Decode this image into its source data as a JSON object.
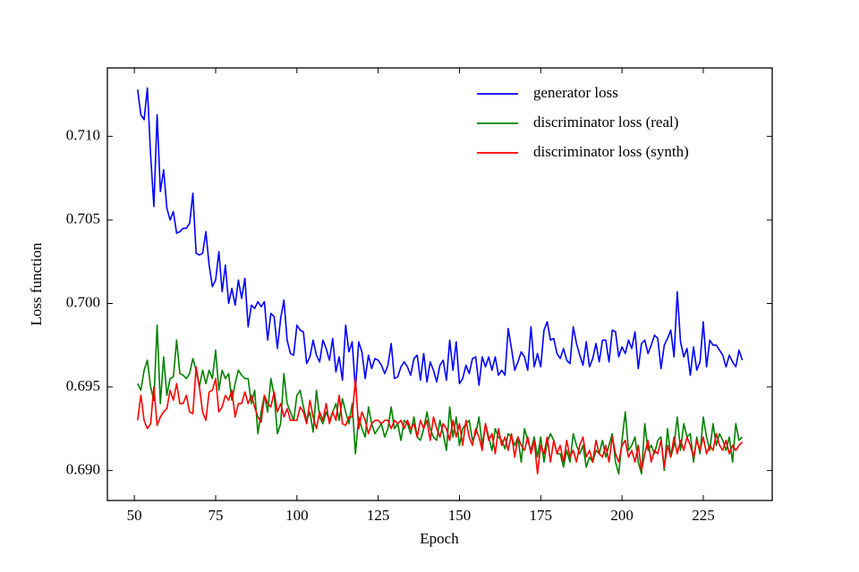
{
  "chart_data": {
    "type": "line",
    "xlabel": "Epoch",
    "ylabel": "Loss function",
    "xlim": [
      41.7,
      246.2
    ],
    "xticks": [
      50,
      75,
      100,
      125,
      150,
      175,
      200,
      225
    ],
    "ylim": [
      0.6882,
      0.7141
    ],
    "yticks": [
      {
        "value": 0.69,
        "label": "0.690"
      },
      0.695,
      {
        "value": 0.7,
        "label": "0.700"
      },
      0.705,
      {
        "value": 0.71,
        "label": "0.710"
      }
    ],
    "legend": "upper right",
    "x": [
      51,
      52,
      53,
      54,
      55,
      56,
      57,
      58,
      59,
      60,
      61,
      62,
      63,
      64,
      65,
      66,
      67,
      68,
      69,
      70,
      71,
      72,
      73,
      74,
      75,
      76,
      77,
      78,
      79,
      80,
      81,
      82,
      83,
      84,
      85,
      86,
      87,
      88,
      89,
      90,
      91,
      92,
      93,
      94,
      95,
      96,
      97,
      98,
      99,
      100,
      101,
      102,
      103,
      104,
      105,
      106,
      107,
      108,
      109,
      110,
      111,
      112,
      113,
      114,
      115,
      116,
      117,
      118,
      119,
      120,
      121,
      122,
      123,
      124,
      125,
      126,
      127,
      128,
      129,
      130,
      131,
      132,
      133,
      134,
      135,
      136,
      137,
      138,
      139,
      140,
      141,
      142,
      143,
      144,
      145,
      146,
      147,
      148,
      149,
      150,
      151,
      152,
      153,
      154,
      155,
      156,
      157,
      158,
      159,
      160,
      161,
      162,
      163,
      164,
      165,
      166,
      167,
      168,
      169,
      170,
      171,
      172,
      173,
      174,
      175,
      176,
      177,
      178,
      179,
      180,
      181,
      182,
      183,
      184,
      185,
      186,
      187,
      188,
      189,
      190,
      191,
      192,
      193,
      194,
      195,
      196,
      197,
      198,
      199,
      200,
      201,
      202,
      203,
      204,
      205,
      206,
      207,
      208,
      209,
      210,
      211,
      212,
      213,
      214,
      215,
      216,
      217,
      218,
      219,
      220,
      221,
      222,
      223,
      224,
      225,
      226,
      227,
      228,
      229,
      230,
      231,
      232,
      233,
      234,
      235,
      236,
      237
    ],
    "series": [
      {
        "name": "generator loss",
        "color": "#0000ff",
        "values": [
          0.7128,
          0.7113,
          0.711,
          0.7129,
          0.7089,
          0.7058,
          0.7113,
          0.7067,
          0.708,
          0.7057,
          0.705,
          0.7055,
          0.7042,
          0.7043,
          0.7045,
          0.7045,
          0.7048,
          0.7066,
          0.703,
          0.7029,
          0.703,
          0.7043,
          0.7023,
          0.701,
          0.7014,
          0.7031,
          0.7007,
          0.7023,
          0.7,
          0.7009,
          0.6999,
          0.7014,
          0.7003,
          0.7015,
          0.6986,
          0.6999,
          0.6997,
          0.7001,
          0.6998,
          0.7001,
          0.6978,
          0.6994,
          0.6992,
          0.6973,
          0.6991,
          0.7002,
          0.6978,
          0.697,
          0.6969,
          0.6987,
          0.6984,
          0.6983,
          0.6964,
          0.6968,
          0.6978,
          0.6969,
          0.6965,
          0.6978,
          0.6973,
          0.6966,
          0.6979,
          0.6959,
          0.6968,
          0.6954,
          0.6987,
          0.6971,
          0.6977,
          0.6948,
          0.6977,
          0.6971,
          0.6955,
          0.6969,
          0.6961,
          0.6967,
          0.6966,
          0.6963,
          0.6958,
          0.6963,
          0.6976,
          0.6955,
          0.6956,
          0.6962,
          0.6965,
          0.6962,
          0.6957,
          0.6967,
          0.6969,
          0.6954,
          0.697,
          0.6953,
          0.6965,
          0.696,
          0.6953,
          0.6963,
          0.6966,
          0.6954,
          0.6978,
          0.696,
          0.6977,
          0.6952,
          0.6955,
          0.6963,
          0.6958,
          0.6967,
          0.6968,
          0.6951,
          0.6968,
          0.6962,
          0.6968,
          0.696,
          0.6968,
          0.6957,
          0.696,
          0.6957,
          0.6985,
          0.6973,
          0.696,
          0.6965,
          0.6971,
          0.6968,
          0.696,
          0.6986,
          0.6962,
          0.697,
          0.6962,
          0.6984,
          0.6989,
          0.6978,
          0.6979,
          0.697,
          0.6967,
          0.6973,
          0.6966,
          0.6964,
          0.6986,
          0.6976,
          0.6969,
          0.6963,
          0.6977,
          0.6962,
          0.6967,
          0.6976,
          0.6965,
          0.6978,
          0.6978,
          0.6965,
          0.6984,
          0.6983,
          0.6968,
          0.6974,
          0.697,
          0.6978,
          0.6973,
          0.6983,
          0.6961,
          0.6976,
          0.6978,
          0.697,
          0.6975,
          0.6981,
          0.6979,
          0.6961,
          0.6975,
          0.6979,
          0.6984,
          0.6968,
          0.7007,
          0.6977,
          0.6968,
          0.6973,
          0.6957,
          0.6974,
          0.696,
          0.6965,
          0.6989,
          0.6962,
          0.6978,
          0.6975,
          0.6975,
          0.6972,
          0.6969,
          0.6962,
          0.6969,
          0.6965,
          0.6962,
          0.6972,
          0.6966
        ]
      },
      {
        "name": "discriminator loss (real)",
        "color": "#008000",
        "values": [
          0.6952,
          0.6948,
          0.696,
          0.6966,
          0.695,
          0.6942,
          0.6987,
          0.694,
          0.6968,
          0.6945,
          0.6955,
          0.6956,
          0.6978,
          0.6958,
          0.6957,
          0.6955,
          0.6958,
          0.6967,
          0.696,
          0.695,
          0.696,
          0.6952,
          0.696,
          0.6955,
          0.6972,
          0.6948,
          0.696,
          0.6955,
          0.6958,
          0.6942,
          0.6952,
          0.696,
          0.6957,
          0.6955,
          0.6955,
          0.694,
          0.6948,
          0.6922,
          0.6935,
          0.6945,
          0.6935,
          0.6955,
          0.6945,
          0.6922,
          0.6928,
          0.6958,
          0.694,
          0.6935,
          0.693,
          0.6945,
          0.6948,
          0.6938,
          0.693,
          0.6935,
          0.6923,
          0.6948,
          0.6932,
          0.6928,
          0.6935,
          0.693,
          0.6935,
          0.694,
          0.693,
          0.6943,
          0.6935,
          0.6928,
          0.694,
          0.691,
          0.6932,
          0.6925,
          0.692,
          0.6938,
          0.6928,
          0.6922,
          0.6925,
          0.6928,
          0.692,
          0.6925,
          0.6938,
          0.6925,
          0.6928,
          0.6918,
          0.693,
          0.6928,
          0.6922,
          0.6932,
          0.692,
          0.6918,
          0.6925,
          0.6935,
          0.6925,
          0.692,
          0.6918,
          0.693,
          0.6922,
          0.6912,
          0.6938,
          0.692,
          0.6932,
          0.6915,
          0.6925,
          0.6928,
          0.693,
          0.6918,
          0.6922,
          0.6932,
          0.6915,
          0.6928,
          0.692,
          0.6912,
          0.6925,
          0.692,
          0.6918,
          0.6913,
          0.6922,
          0.692,
          0.6915,
          0.692,
          0.6905,
          0.6925,
          0.6918,
          0.6912,
          0.692,
          0.6908,
          0.692,
          0.6905,
          0.6917,
          0.6922,
          0.6918,
          0.691,
          0.691,
          0.6902,
          0.6912,
          0.6905,
          0.6922,
          0.6915,
          0.691,
          0.6915,
          0.6902,
          0.6908,
          0.6905,
          0.6912,
          0.691,
          0.6918,
          0.6908,
          0.6915,
          0.6922,
          0.6905,
          0.6898,
          0.6918,
          0.6935,
          0.6912,
          0.6915,
          0.692,
          0.6905,
          0.6898,
          0.6928,
          0.6912,
          0.6915,
          0.691,
          0.6918,
          0.692,
          0.69,
          0.6925,
          0.6908,
          0.6915,
          0.6932,
          0.6912,
          0.6928,
          0.692,
          0.6922,
          0.6905,
          0.692,
          0.691,
          0.6932,
          0.692,
          0.6912,
          0.6928,
          0.6915,
          0.6922,
          0.6918,
          0.6912,
          0.692,
          0.6905,
          0.6928,
          0.6918,
          0.692
        ]
      },
      {
        "name": "discriminator loss (synth)",
        "color": "#ff0000",
        "values": [
          0.693,
          0.6945,
          0.693,
          0.6925,
          0.6928,
          0.695,
          0.6927,
          0.6932,
          0.6935,
          0.6937,
          0.6948,
          0.6942,
          0.6952,
          0.694,
          0.694,
          0.6945,
          0.6935,
          0.6934,
          0.6962,
          0.695,
          0.6935,
          0.693,
          0.6947,
          0.6948,
          0.6955,
          0.6935,
          0.6938,
          0.6945,
          0.6942,
          0.6948,
          0.6932,
          0.694,
          0.694,
          0.6947,
          0.694,
          0.6945,
          0.6938,
          0.6932,
          0.6929,
          0.6945,
          0.694,
          0.6938,
          0.6947,
          0.6935,
          0.694,
          0.6932,
          0.6937,
          0.693,
          0.693,
          0.693,
          0.6938,
          0.6935,
          0.6928,
          0.6942,
          0.6932,
          0.6925,
          0.6935,
          0.693,
          0.694,
          0.6928,
          0.6935,
          0.693,
          0.6945,
          0.6928,
          0.6927,
          0.6932,
          0.6932,
          0.6955,
          0.6925,
          0.6935,
          0.693,
          0.6922,
          0.6928,
          0.693,
          0.693,
          0.6928,
          0.693,
          0.693,
          0.6925,
          0.693,
          0.6928,
          0.693,
          0.6925,
          0.693,
          0.6925,
          0.6928,
          0.692,
          0.693,
          0.6925,
          0.693,
          0.6918,
          0.6932,
          0.6925,
          0.692,
          0.6928,
          0.6925,
          0.6918,
          0.693,
          0.692,
          0.6928,
          0.6915,
          0.693,
          0.692,
          0.6915,
          0.6925,
          0.692,
          0.6912,
          0.6928,
          0.6918,
          0.6922,
          0.691,
          0.6925,
          0.6915,
          0.692,
          0.6912,
          0.6922,
          0.6908,
          0.692,
          0.6915,
          0.6912,
          0.692,
          0.691,
          0.6918,
          0.6898,
          0.6915,
          0.691,
          0.692,
          0.6905,
          0.6918,
          0.691,
          0.6915,
          0.6905,
          0.6918,
          0.6908,
          0.6912,
          0.6905,
          0.6915,
          0.692,
          0.6908,
          0.6912,
          0.6905,
          0.6918,
          0.691,
          0.6908,
          0.6915,
          0.6905,
          0.692,
          0.691,
          0.6905,
          0.6915,
          0.6918,
          0.6908,
          0.6912,
          0.6905,
          0.6915,
          0.69,
          0.691,
          0.6918,
          0.6905,
          0.6912,
          0.691,
          0.6918,
          0.6902,
          0.6915,
          0.6908,
          0.692,
          0.691,
          0.6918,
          0.6912,
          0.692,
          0.6915,
          0.6908,
          0.6918,
          0.6912,
          0.692,
          0.691,
          0.6915,
          0.6912,
          0.6922,
          0.6915,
          0.6912,
          0.6918,
          0.691,
          0.6915,
          0.6912,
          0.6915,
          0.6917
        ]
      }
    ]
  }
}
